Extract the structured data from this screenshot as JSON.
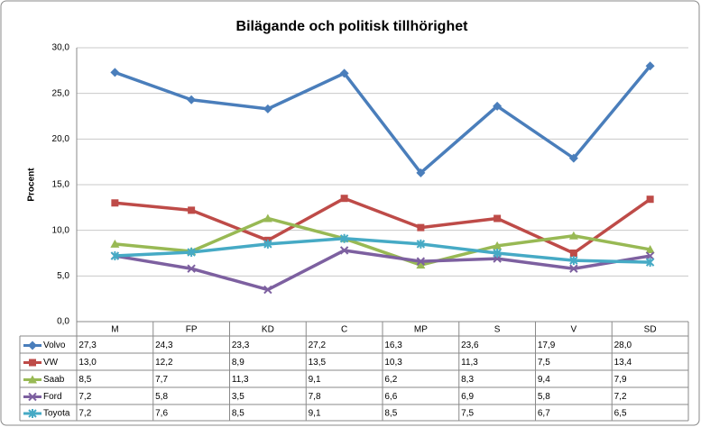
{
  "chart_data": {
    "type": "line",
    "title": "Bilägande och politisk tillhörighet",
    "y_label": "Procent",
    "categories": [
      "M",
      "FP",
      "KD",
      "C",
      "MP",
      "S",
      "V",
      "SD"
    ],
    "series": [
      {
        "name": "Volvo",
        "color": "#4a7ebb",
        "values": [
          27.3,
          24.3,
          23.3,
          27.2,
          16.3,
          23.6,
          17.9,
          28.0
        ],
        "value_labels": [
          "27,3",
          "24,3",
          "23,3",
          "27,2",
          "16,3",
          "23,6",
          "17,9",
          "28,0"
        ]
      },
      {
        "name": "VW",
        "color": "#be4b48",
        "values": [
          13.0,
          12.2,
          8.9,
          13.5,
          10.3,
          11.3,
          7.5,
          13.4
        ],
        "value_labels": [
          "13,0",
          "12,2",
          "8,9",
          "13,5",
          "10,3",
          "11,3",
          "7,5",
          "13,4"
        ]
      },
      {
        "name": "Saab",
        "color": "#98b954",
        "values": [
          8.5,
          7.7,
          11.3,
          9.1,
          6.2,
          8.3,
          9.4,
          7.9
        ],
        "value_labels": [
          "8,5",
          "7,7",
          "11,3",
          "9,1",
          "6,2",
          "8,3",
          "9,4",
          "7,9"
        ]
      },
      {
        "name": "Ford",
        "color": "#7d60a0",
        "values": [
          7.2,
          5.8,
          3.5,
          7.8,
          6.6,
          6.9,
          5.8,
          7.2
        ],
        "value_labels": [
          "7,2",
          "5,8",
          "3,5",
          "7,8",
          "6,6",
          "6,9",
          "5,8",
          "7,2"
        ]
      },
      {
        "name": "Toyota",
        "color": "#46aac5",
        "values": [
          7.2,
          7.6,
          8.5,
          9.1,
          8.5,
          7.5,
          6.7,
          6.5
        ],
        "value_labels": [
          "7,2",
          "7,6",
          "8,5",
          "9,1",
          "8,5",
          "7,5",
          "6,7",
          "6,5"
        ]
      }
    ],
    "ylim": [
      0,
      30
    ],
    "yticks": [
      {
        "value": 0,
        "label": "0,0"
      },
      {
        "value": 5,
        "label": "5,0"
      },
      {
        "value": 10,
        "label": "10,0"
      },
      {
        "value": 15,
        "label": "15,0"
      },
      {
        "value": 20,
        "label": "20,0"
      },
      {
        "value": 25,
        "label": "25,0"
      },
      {
        "value": 30,
        "label": "30,0"
      }
    ],
    "grid": true
  }
}
